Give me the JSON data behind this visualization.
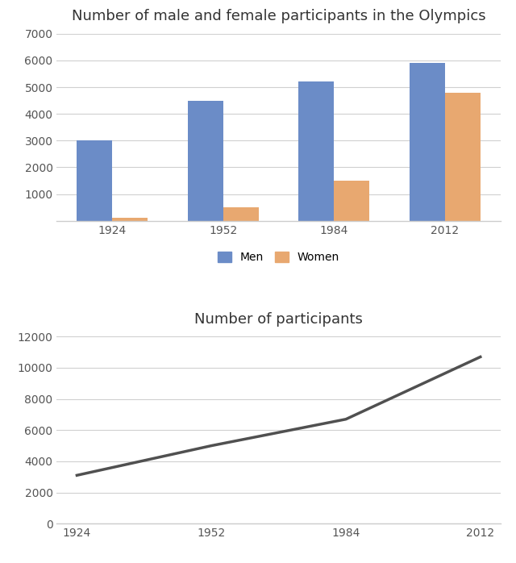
{
  "bar_title": "Number of male and female participants in the Olympics",
  "line_title": "Number of participants",
  "years": [
    "1924",
    "1952",
    "1984",
    "2012"
  ],
  "men_values": [
    3000,
    4500,
    5200,
    5900
  ],
  "women_values": [
    100,
    500,
    1500,
    4800
  ],
  "total_values": [
    3100,
    5000,
    6700,
    10700
  ],
  "bar_color_men": "#6B8CC7",
  "bar_color_women": "#E8A870",
  "line_color": "#505050",
  "bar_ylim": [
    0,
    7000
  ],
  "bar_yticks": [
    0,
    1000,
    2000,
    3000,
    4000,
    5000,
    6000,
    7000
  ],
  "line_ylim": [
    0,
    12000
  ],
  "line_yticks": [
    0,
    2000,
    4000,
    6000,
    8000,
    10000,
    12000
  ],
  "bar_width": 0.32,
  "background_color": "#ffffff",
  "title_fontsize": 13,
  "tick_fontsize": 10,
  "legend_labels": [
    "Men",
    "Women"
  ],
  "grid_color": "#d0d0d0",
  "spine_color": "#cccccc"
}
